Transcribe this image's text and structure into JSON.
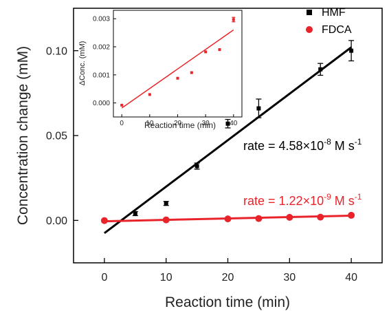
{
  "chart_data": [
    {
      "type": "scatter",
      "xlabel": "Reaction time (min)",
      "ylabel": "Concentration change (mM)",
      "xlim": [
        -5,
        45
      ],
      "ylim": [
        -0.025,
        0.125
      ],
      "x_ticks": [
        0,
        10,
        20,
        30,
        40
      ],
      "x_tick_labels": [
        "0",
        "10",
        "20",
        "30",
        "40"
      ],
      "y_ticks": [
        0.0,
        0.05,
        0.1
      ],
      "y_tick_labels": [
        "0.00",
        "0.05",
        "0.10"
      ],
      "grid": false,
      "legend_position": "top-right",
      "series": [
        {
          "name": "HMF",
          "marker": "square",
          "color": "#000000",
          "points": [
            {
              "x": 5,
              "y": 0.004,
              "err": 0.0012
            },
            {
              "x": 10,
              "y": 0.01,
              "err": 0.0012
            },
            {
              "x": 15,
              "y": 0.032,
              "err": 0.0018
            },
            {
              "x": 20,
              "y": 0.057,
              "err": 0.0025
            },
            {
              "x": 25,
              "y": 0.066,
              "err": 0.0055
            },
            {
              "x": 35,
              "y": 0.089,
              "err": 0.0035
            },
            {
              "x": 40,
              "y": 0.1,
              "err": 0.006
            }
          ],
          "fit": {
            "x0": 0,
            "y0": -0.0075,
            "x1": 40,
            "y1": 0.102,
            "color": "#000000"
          }
        },
        {
          "name": "FDCA",
          "marker": "circle",
          "color": "#e8242a",
          "points": [
            {
              "x": 0,
              "y": -0.0001
            },
            {
              "x": 10,
              "y": 0.0003
            },
            {
              "x": 20,
              "y": 0.0009
            },
            {
              "x": 25,
              "y": 0.0011
            },
            {
              "x": 30,
              "y": 0.0018
            },
            {
              "x": 35,
              "y": 0.0019
            },
            {
              "x": 40,
              "y": 0.003
            }
          ],
          "fit": {
            "x0": 0,
            "y0": -0.0005,
            "x1": 40,
            "y1": 0.0028,
            "color": "#e8242a"
          }
        }
      ],
      "annotations": [
        {
          "base": "rate = 4.58×10",
          "exponent": "-8",
          "unit": " M s",
          "unit_exponent": "-1",
          "color": "#000000",
          "anchor_x": 20,
          "anchor_y": 0.041
        },
        {
          "base": "rate = 1.22×10",
          "exponent": "-9",
          "unit": " M s",
          "unit_exponent": "-1",
          "color": "#e8242a",
          "anchor_x": 20,
          "anchor_y": 0.0105
        }
      ]
    },
    {
      "type": "scatter",
      "xlabel": "Reaction time (min)",
      "ylabel": "ΔConc. (mM)",
      "xlim": [
        -3,
        43
      ],
      "ylim": [
        -0.0005,
        0.0033
      ],
      "x_ticks": [
        0,
        10,
        20,
        30,
        40
      ],
      "x_tick_labels": [
        "0",
        "10",
        "20",
        "30",
        "40"
      ],
      "y_ticks": [
        0.0,
        0.001,
        0.002,
        0.003
      ],
      "y_tick_labels": [
        "0.000",
        "0.001",
        "0.002",
        "0.003"
      ],
      "grid": false,
      "series": [
        {
          "name": "FDCA",
          "marker": "square",
          "color": "#e8242a",
          "points": [
            {
              "x": 0,
              "y": -8e-05
            },
            {
              "x": 10,
              "y": 0.0003
            },
            {
              "x": 20,
              "y": 0.00088
            },
            {
              "x": 25,
              "y": 0.00108
            },
            {
              "x": 30,
              "y": 0.00182
            },
            {
              "x": 35,
              "y": 0.0019
            },
            {
              "x": 40,
              "y": 0.00297,
              "err": 8e-05
            }
          ],
          "fit": {
            "x0": 0,
            "y0": -0.00018,
            "x1": 40,
            "y1": 0.0026,
            "color": "#e8242a"
          }
        }
      ]
    }
  ]
}
